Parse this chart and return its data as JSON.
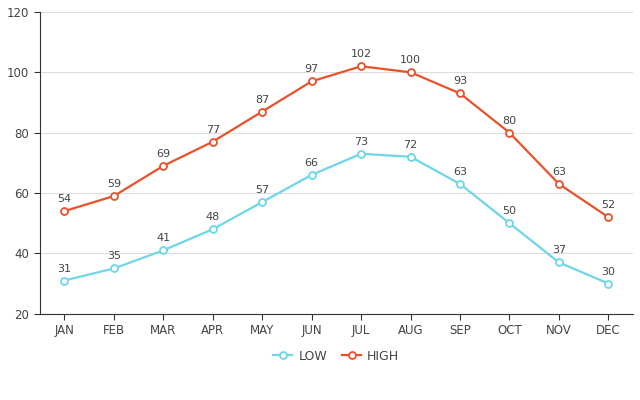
{
  "months": [
    "JAN",
    "FEB",
    "MAR",
    "APR",
    "MAY",
    "JUN",
    "JUL",
    "AUG",
    "SEP",
    "OCT",
    "NOV",
    "DEC"
  ],
  "low": [
    31,
    35,
    41,
    48,
    57,
    66,
    73,
    72,
    63,
    50,
    37,
    30
  ],
  "high": [
    54,
    59,
    69,
    77,
    87,
    97,
    102,
    100,
    93,
    80,
    63,
    52
  ],
  "low_color": "#6dd6e8",
  "high_color": "#e8522a",
  "low_label": "LOW",
  "high_label": "HIGH",
  "ylim": [
    20,
    120
  ],
  "yticks": [
    20,
    40,
    60,
    80,
    100,
    120
  ],
  "background_color": "#ffffff",
  "grid_color": "#dddddd",
  "linewidth": 1.6,
  "marker": "o",
  "markersize": 5,
  "markerfacecolor": "#ffffff",
  "label_fontsize": 8,
  "tick_fontsize": 8.5,
  "legend_fontsize": 9,
  "label_color": "#444444",
  "tick_color": "#444444",
  "spine_color": "#333333"
}
